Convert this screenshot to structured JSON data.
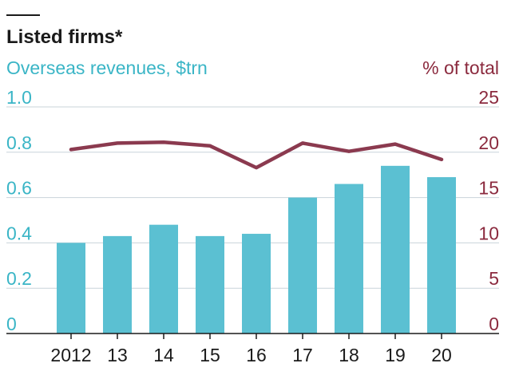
{
  "chart_data": {
    "type": "bar",
    "title": "Listed firms*",
    "categories": [
      "2012",
      "13",
      "14",
      "15",
      "16",
      "17",
      "18",
      "19",
      "20"
    ],
    "left_axis": {
      "label": "Overseas revenues, $trn",
      "range": [
        0,
        1.0
      ],
      "ticks": [
        "0",
        "0.2",
        "0.4",
        "0.6",
        "0.8",
        "1.0"
      ],
      "color": "#3ab5c6"
    },
    "right_axis": {
      "label": "% of total",
      "range": [
        0,
        25
      ],
      "ticks": [
        "0",
        "5",
        "10",
        "15",
        "20",
        "25"
      ],
      "color": "#8b2a3e"
    },
    "series": [
      {
        "type": "bar",
        "axis": "left",
        "color": "#5bc0d2",
        "values": [
          0.4,
          0.43,
          0.48,
          0.43,
          0.44,
          0.6,
          0.66,
          0.74,
          0.69
        ]
      },
      {
        "type": "line",
        "axis": "right",
        "color": "#8b3a4f",
        "values": [
          20.3,
          21.0,
          21.1,
          20.7,
          18.3,
          21.0,
          20.1,
          20.9,
          19.2
        ]
      }
    ],
    "grid": true
  }
}
